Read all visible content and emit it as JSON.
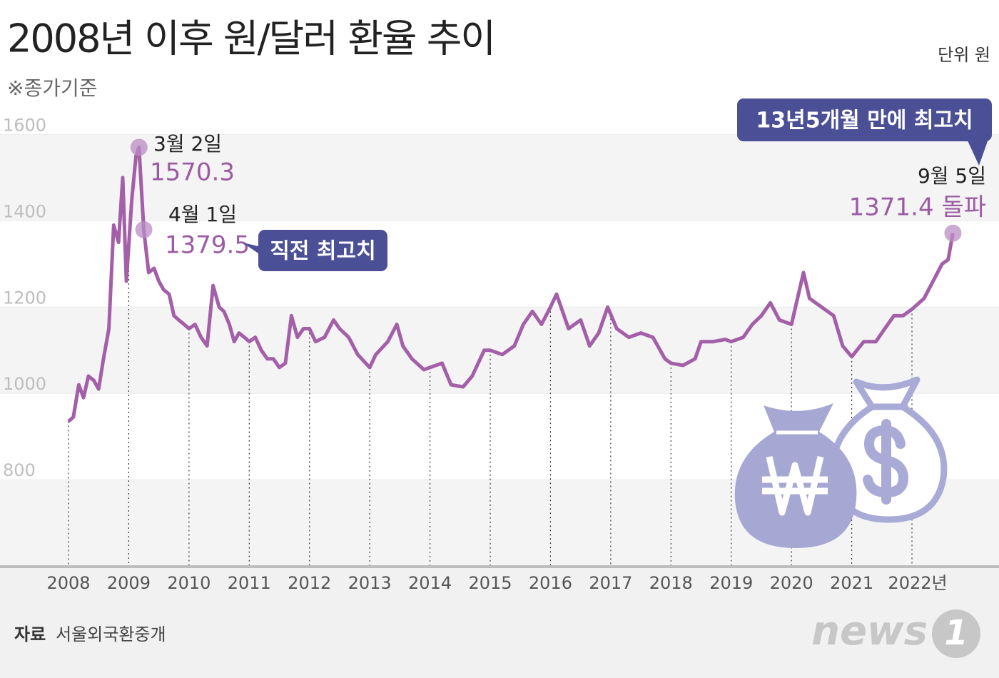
{
  "chart_data": {
    "type": "line",
    "title": "2008년 이후 원/달러 환율 추이",
    "subtitle": "※종가기준",
    "unit_note": "단위 원",
    "source_label": "자료",
    "source": "서울외국환중개",
    "logo": [
      "news",
      "1"
    ],
    "xlim": [
      2008,
      2023
    ],
    "xticks": [
      2008,
      2009,
      2010,
      2011,
      2012,
      2013,
      2014,
      2015,
      2016,
      2017,
      2018,
      2019,
      2020,
      2021,
      {
        "value": 2022,
        "label": "2022년"
      }
    ],
    "ylim": [
      600,
      1600
    ],
    "yticks": [
      800,
      1000,
      1200,
      1400,
      1600
    ],
    "grid": true,
    "x": [
      2008.0,
      2008.08,
      2008.17,
      2008.25,
      2008.33,
      2008.42,
      2008.5,
      2008.58,
      2008.67,
      2008.75,
      2008.83,
      2008.9,
      2008.96,
      2009.05,
      2009.12,
      2009.17,
      2009.25,
      2009.33,
      2009.42,
      2009.5,
      2009.58,
      2009.67,
      2009.75,
      2009.83,
      2009.92,
      2010.0,
      2010.1,
      2010.2,
      2010.3,
      2010.4,
      2010.5,
      2010.58,
      2010.67,
      2010.75,
      2010.83,
      2010.92,
      2011.0,
      2011.1,
      2011.2,
      2011.3,
      2011.4,
      2011.5,
      2011.6,
      2011.7,
      2011.8,
      2011.9,
      2012.0,
      2012.1,
      2012.25,
      2012.4,
      2012.5,
      2012.65,
      2012.8,
      2013.0,
      2013.1,
      2013.3,
      2013.45,
      2013.55,
      2013.7,
      2013.9,
      2014.0,
      2014.2,
      2014.35,
      2014.55,
      2014.7,
      2014.9,
      2015.0,
      2015.2,
      2015.4,
      2015.55,
      2015.7,
      2015.85,
      2016.0,
      2016.1,
      2016.3,
      2016.5,
      2016.65,
      2016.8,
      2016.95,
      2017.1,
      2017.3,
      2017.5,
      2017.7,
      2017.9,
      2018.0,
      2018.2,
      2018.4,
      2018.5,
      2018.7,
      2018.9,
      2019.0,
      2019.2,
      2019.35,
      2019.5,
      2019.65,
      2019.8,
      2020.0,
      2020.2,
      2020.3,
      2020.5,
      2020.7,
      2020.85,
      2021.0,
      2021.2,
      2021.4,
      2021.55,
      2021.7,
      2021.85,
      2022.0,
      2022.2,
      2022.35,
      2022.5,
      2022.6,
      2022.68
    ],
    "series": [
      {
        "color": "#a35fa8",
        "values": [
          935,
          945,
          1020,
          990,
          1040,
          1030,
          1010,
          1080,
          1150,
          1390,
          1350,
          1500,
          1260,
          1450,
          1550,
          1570.3,
          1379.5,
          1280,
          1290,
          1260,
          1240,
          1230,
          1180,
          1170,
          1160,
          1150,
          1160,
          1130,
          1110,
          1250,
          1200,
          1190,
          1160,
          1120,
          1140,
          1130,
          1120,
          1130,
          1100,
          1080,
          1080,
          1060,
          1070,
          1180,
          1130,
          1150,
          1150,
          1120,
          1130,
          1170,
          1150,
          1130,
          1090,
          1060,
          1090,
          1120,
          1160,
          1110,
          1080,
          1055,
          1060,
          1070,
          1020,
          1015,
          1040,
          1100,
          1100,
          1090,
          1110,
          1160,
          1190,
          1160,
          1200,
          1230,
          1150,
          1170,
          1110,
          1140,
          1200,
          1150,
          1130,
          1140,
          1130,
          1080,
          1070,
          1065,
          1080,
          1120,
          1120,
          1125,
          1120,
          1130,
          1160,
          1180,
          1210,
          1170,
          1160,
          1280,
          1220,
          1200,
          1180,
          1110,
          1085,
          1120,
          1120,
          1150,
          1180,
          1180,
          1195,
          1220,
          1260,
          1300,
          1310,
          1371.4
        ]
      }
    ],
    "annotations": [
      {
        "date": "3월 2일",
        "value": 1570.3
      },
      {
        "date": "4월 1일",
        "value": 1379.5,
        "note": "직전 최고치"
      },
      {
        "date": "9월 5일",
        "value": 1371.4,
        "value_label": "1371.4 돌파",
        "note": "13년5개월 만에 최고치"
      }
    ],
    "label_color": "#9b5ba3",
    "callout_color": "#4a4f96"
  }
}
